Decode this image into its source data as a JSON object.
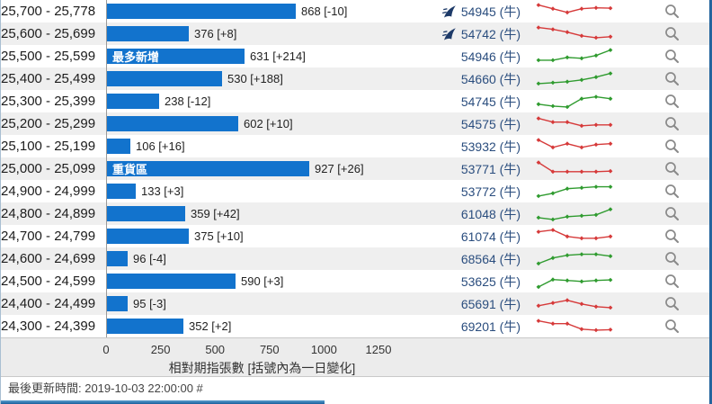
{
  "chart_data": {
    "type": "bar",
    "orientation": "horizontal",
    "title": "",
    "xlabel": "相對期指張數 [括號內為一日變化]",
    "x_ticks": [
      0,
      250,
      500,
      750,
      1000,
      1250
    ],
    "xlim": [
      0,
      1250
    ],
    "grid": false,
    "bar_color": "#1273cd",
    "categories": [
      "25,700 - 25,778",
      "25,600 - 25,699",
      "25,500 - 25,599",
      "25,400 - 25,499",
      "25,300 - 25,399",
      "25,200 - 25,299",
      "25,100 - 25,199",
      "25,000 - 25,099",
      "24,900 - 24,999",
      "24,800 - 24,899",
      "24,700 - 24,799",
      "24,600 - 24,699",
      "24,500 - 24,599",
      "24,400 - 24,499",
      "24,300 - 24,399"
    ],
    "values": [
      868,
      376,
      631,
      530,
      238,
      602,
      106,
      927,
      133,
      359,
      375,
      96,
      590,
      95,
      352
    ],
    "one_day_change": [
      -10,
      8,
      214,
      188,
      -12,
      10,
      16,
      26,
      3,
      42,
      10,
      -4,
      3,
      -3,
      2
    ],
    "annotations": [
      {
        "category": "25,500 - 25,599",
        "label": "最多新增"
      },
      {
        "category": "25,000 - 25,099",
        "label": "重貨區"
      }
    ]
  },
  "rows": [
    {
      "price_range": "25,700 - 25,778",
      "value": 868,
      "change": -10,
      "value_label": "868 [-10]",
      "badge": "",
      "code": "54945 (牛)",
      "hot": true,
      "trend": "down",
      "spark": [
        8.5,
        6.5,
        4.5,
        6.5,
        7.0,
        6.8
      ]
    },
    {
      "price_range": "25,600 - 25,699",
      "value": 376,
      "change": 8,
      "value_label": "376 [+8]",
      "badge": "",
      "code": "54742 (牛)",
      "hot": true,
      "trend": "down",
      "spark": [
        8.5,
        7.5,
        6.0,
        4.0,
        3.0,
        3.5
      ]
    },
    {
      "price_range": "25,500 - 25,599",
      "value": 631,
      "change": 214,
      "value_label": "631 [+214]",
      "badge": "最多新增",
      "code": "54946 (牛)",
      "hot": false,
      "trend": "up",
      "spark": [
        3.0,
        3.0,
        4.5,
        4.0,
        5.5,
        8.5
      ]
    },
    {
      "price_range": "25,400 - 25,499",
      "value": 530,
      "change": 188,
      "value_label": "530 [+188]",
      "badge": "",
      "code": "54660 (牛)",
      "hot": false,
      "trend": "up",
      "spark": [
        2.5,
        3.0,
        3.5,
        4.5,
        6.0,
        8.0
      ]
    },
    {
      "price_range": "25,300 - 25,399",
      "value": 238,
      "change": -12,
      "value_label": "238 [-12]",
      "badge": "",
      "code": "54745 (牛)",
      "hot": false,
      "trend": "up",
      "spark": [
        3.5,
        2.5,
        2.0,
        6.5,
        7.5,
        6.5
      ]
    },
    {
      "price_range": "25,200 - 25,299",
      "value": 602,
      "change": 10,
      "value_label": "602 [+10]",
      "badge": "",
      "code": "54575 (牛)",
      "hot": false,
      "trend": "down",
      "spark": [
        8.0,
        6.0,
        6.0,
        4.0,
        4.5,
        4.5
      ]
    },
    {
      "price_range": "25,100 - 25,199",
      "value": 106,
      "change": 16,
      "value_label": "106 [+16]",
      "badge": "",
      "code": "53932 (牛)",
      "hot": false,
      "trend": "down",
      "spark": [
        8.5,
        4.5,
        6.5,
        4.5,
        6.0,
        6.5
      ]
    },
    {
      "price_range": "25,000 - 25,099",
      "value": 927,
      "change": 26,
      "value_label": "927 [+26]",
      "badge": "重貨區",
      "code": "53771 (牛)",
      "hot": false,
      "trend": "down",
      "spark": [
        8.5,
        3.5,
        3.5,
        3.5,
        3.5,
        3.8
      ]
    },
    {
      "price_range": "24,900 - 24,999",
      "value": 133,
      "change": 3,
      "value_label": "133 [+3]",
      "badge": "",
      "code": "53772 (牛)",
      "hot": false,
      "trend": "up",
      "spark": [
        2.5,
        4.0,
        6.5,
        7.0,
        7.5,
        7.5
      ]
    },
    {
      "price_range": "24,800 - 24,899",
      "value": 359,
      "change": 42,
      "value_label": "359 [+42]",
      "badge": "",
      "code": "61048 (牛)",
      "hot": false,
      "trend": "up",
      "spark": [
        3.0,
        2.0,
        3.5,
        4.0,
        4.5,
        7.5
      ]
    },
    {
      "price_range": "24,700 - 24,799",
      "value": 375,
      "change": 10,
      "value_label": "375 [+10]",
      "badge": "",
      "code": "61074 (牛)",
      "hot": false,
      "trend": "down",
      "spark": [
        7.5,
        8.5,
        5.0,
        4.0,
        4.0,
        5.0
      ]
    },
    {
      "price_range": "24,600 - 24,699",
      "value": 96,
      "change": -4,
      "value_label": "96 [-4]",
      "badge": "",
      "code": "68564 (牛)",
      "hot": false,
      "trend": "up",
      "spark": [
        2.5,
        5.5,
        7.0,
        7.5,
        7.5,
        6.5
      ]
    },
    {
      "price_range": "24,500 - 24,599",
      "value": 590,
      "change": 3,
      "value_label": "590 [+3]",
      "badge": "",
      "code": "53625 (牛)",
      "hot": false,
      "trend": "up",
      "spark": [
        2.0,
        6.0,
        5.5,
        5.0,
        5.5,
        5.8
      ]
    },
    {
      "price_range": "24,400 - 24,499",
      "value": 95,
      "change": -3,
      "value_label": "95 [-3]",
      "badge": "",
      "code": "65691 (牛)",
      "hot": false,
      "trend": "down",
      "spark": [
        4.0,
        5.5,
        7.0,
        5.0,
        3.5,
        3.0
      ]
    },
    {
      "price_range": "24,300 - 24,399",
      "value": 352,
      "change": 2,
      "value_label": "352 [+2]",
      "badge": "",
      "code": "69201 (牛)",
      "hot": false,
      "trend": "down",
      "spark": [
        8.0,
        6.5,
        6.5,
        3.5,
        3.0,
        3.2
      ]
    }
  ],
  "axis": {
    "ticks": [
      "0",
      "250",
      "500",
      "750",
      "1000",
      "1250"
    ],
    "title": "相對期指張數 [括號內為一日變化]"
  },
  "footer": {
    "last_update": "最後更新時間: 2019-10-03 22:00:00 #"
  },
  "icons": {
    "hot": "hot-icon",
    "magnifier": "search-icon"
  },
  "colors": {
    "bar": "#1273cd",
    "spark_up": "#2f9b2f",
    "spark_down": "#d63a3a",
    "link": "#2a4d7e",
    "hot_icon": "#1d3a68",
    "magnifier": "#8a8a8a",
    "row_alt_bg": "#efefef",
    "axis_bg": "#ececec",
    "bottom_bar": "#1a5f9b"
  }
}
